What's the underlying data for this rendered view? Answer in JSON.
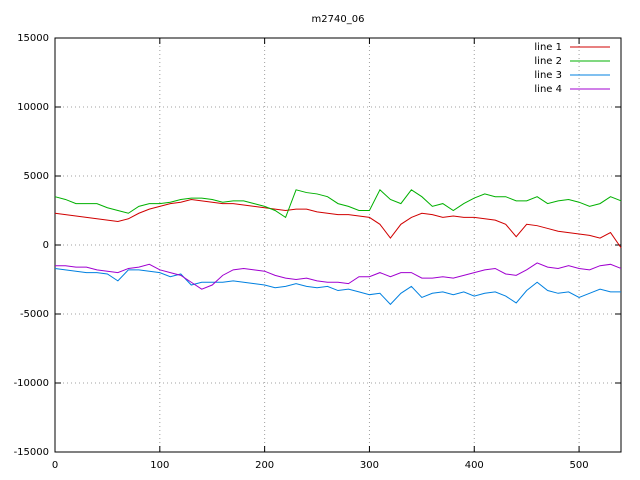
{
  "chart_data": {
    "type": "line",
    "title": "m2740_06",
    "x": [
      0,
      10,
      20,
      30,
      40,
      50,
      60,
      70,
      80,
      90,
      100,
      110,
      120,
      130,
      140,
      150,
      160,
      170,
      180,
      190,
      200,
      210,
      220,
      230,
      240,
      250,
      260,
      270,
      280,
      290,
      300,
      310,
      320,
      330,
      340,
      350,
      360,
      370,
      380,
      390,
      400,
      410,
      420,
      430,
      440,
      450,
      460,
      470,
      480,
      490,
      500,
      510,
      520,
      530,
      540
    ],
    "series": [
      {
        "name": "line 1",
        "color": "#d00000",
        "values": [
          2300,
          2200,
          2100,
          2000,
          1900,
          1800,
          1700,
          1900,
          2300,
          2600,
          2800,
          3000,
          3100,
          3300,
          3200,
          3100,
          3000,
          3000,
          2900,
          2800,
          2700,
          2600,
          2500,
          2600,
          2600,
          2400,
          2300,
          2200,
          2200,
          2100,
          2000,
          1500,
          500,
          1500,
          2000,
          2300,
          2200,
          2000,
          2100,
          2000,
          2000,
          1900,
          1800,
          1500,
          600,
          1500,
          1400,
          1200,
          1000,
          900,
          800,
          700,
          500,
          900,
          -200
        ]
      },
      {
        "name": "line 2",
        "color": "#00b000",
        "values": [
          3500,
          3300,
          3000,
          3000,
          3000,
          2700,
          2500,
          2300,
          2800,
          3000,
          3000,
          3100,
          3300,
          3400,
          3400,
          3300,
          3100,
          3200,
          3200,
          3000,
          2800,
          2500,
          2000,
          4000,
          3800,
          3700,
          3500,
          3000,
          2800,
          2500,
          2500,
          4000,
          3300,
          3000,
          4000,
          3500,
          2800,
          3000,
          2500,
          3000,
          3400,
          3700,
          3500,
          3500,
          3200,
          3200,
          3500,
          3000,
          3200,
          3300,
          3100,
          2800,
          3000,
          3500,
          3200
        ]
      },
      {
        "name": "line 3",
        "color": "#0080e0",
        "values": [
          -1700,
          -1800,
          -1900,
          -2000,
          -2000,
          -2100,
          -2600,
          -1800,
          -1800,
          -1900,
          -2000,
          -2300,
          -2100,
          -2900,
          -2700,
          -2700,
          -2700,
          -2600,
          -2700,
          -2800,
          -2900,
          -3100,
          -3000,
          -2800,
          -3000,
          -3100,
          -3000,
          -3300,
          -3200,
          -3400,
          -3600,
          -3500,
          -4300,
          -3500,
          -3000,
          -3800,
          -3500,
          -3400,
          -3600,
          -3400,
          -3700,
          -3500,
          -3400,
          -3700,
          -4200,
          -3300,
          -2700,
          -3300,
          -3500,
          -3400,
          -3800,
          -3500,
          -3200,
          -3400,
          -3400
        ]
      },
      {
        "name": "line 4",
        "color": "#a000d0",
        "values": [
          -1500,
          -1500,
          -1600,
          -1600,
          -1800,
          -1900,
          -2000,
          -1700,
          -1600,
          -1400,
          -1800,
          -2000,
          -2200,
          -2700,
          -3200,
          -2900,
          -2200,
          -1800,
          -1700,
          -1800,
          -1900,
          -2200,
          -2400,
          -2500,
          -2400,
          -2600,
          -2700,
          -2700,
          -2800,
          -2300,
          -2300,
          -2000,
          -2300,
          -2000,
          -2000,
          -2400,
          -2400,
          -2300,
          -2400,
          -2200,
          -2000,
          -1800,
          -1700,
          -2100,
          -2200,
          -1800,
          -1300,
          -1600,
          -1700,
          -1500,
          -1700,
          -1800,
          -1500,
          -1400,
          -1700
        ]
      }
    ],
    "xlim": [
      0,
      540
    ],
    "xticks": [
      0,
      100,
      200,
      300,
      400,
      500
    ],
    "ylim": [
      -15000,
      15000
    ],
    "yticks": [
      -15000,
      -10000,
      -5000,
      0,
      5000,
      10000,
      15000
    ],
    "grid": true,
    "legend": "top-right"
  }
}
